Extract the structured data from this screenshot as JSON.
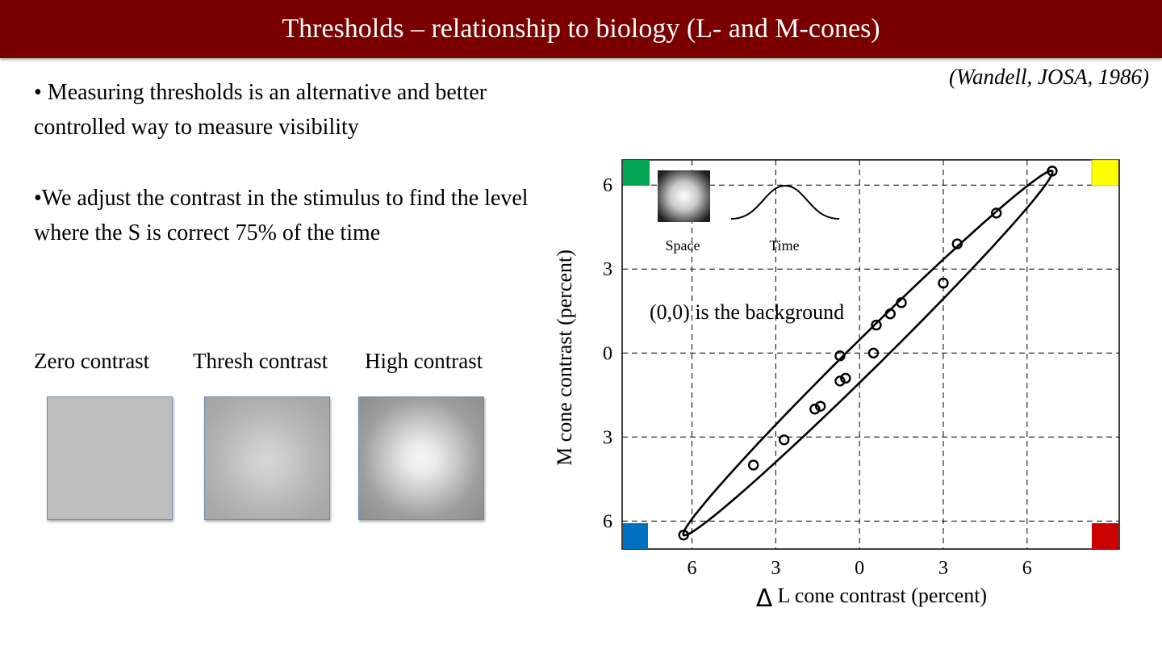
{
  "slide": {
    "title": "Thresholds – relationship to biology (L- and M-cones)",
    "citation": "(Wandell, JOSA, 1986)",
    "bullet1": "• Measuring thresholds is an alternative and better controlled way to measure visibility",
    "bullet2": "•We adjust the contrast in the stimulus to find the level where the S is correct 75% of the time"
  },
  "contrast_examples": {
    "zero_label": "Zero contrast",
    "thresh_label": "Thresh contrast",
    "high_label": "High contrast"
  },
  "colors": {
    "title_bar": "#7a0000",
    "corner_top_left": "#00a651",
    "corner_top_right": "#ffff00",
    "corner_bottom_left": "#0070c0",
    "corner_bottom_right": "#cc0000"
  },
  "chart_data": {
    "type": "scatter",
    "xlabel": "L cone contrast (percent)",
    "xlabel_prefix": "Δ",
    "ylabel": "M cone contrast (percent)",
    "xlim": [
      -8.5,
      9.3
    ],
    "ylim": [
      -7,
      6.9
    ],
    "x_ticks": [
      -6,
      -3,
      0,
      3,
      6
    ],
    "x_tick_labels": [
      "6",
      "3",
      "0",
      "3",
      "6"
    ],
    "y_ticks": [
      6,
      3,
      0,
      -3,
      -6
    ],
    "y_tick_labels": [
      "6",
      "3",
      "0",
      "3",
      "6"
    ],
    "grid": true,
    "grid_style": "dashed",
    "annotation": "(0,0) is the background",
    "inset_space_label": "Space",
    "inset_time_label": "Time",
    "points": [
      {
        "x": -6.3,
        "y": -6.5
      },
      {
        "x": -3.8,
        "y": -4.0
      },
      {
        "x": -2.7,
        "y": -3.1
      },
      {
        "x": -1.6,
        "y": -2.0
      },
      {
        "x": -1.4,
        "y": -1.9
      },
      {
        "x": -0.7,
        "y": -1.0
      },
      {
        "x": -0.5,
        "y": -0.9
      },
      {
        "x": -0.7,
        "y": -0.1
      },
      {
        "x": 0.5,
        "y": 0.0
      },
      {
        "x": 0.6,
        "y": 1.0
      },
      {
        "x": 1.1,
        "y": 1.4
      },
      {
        "x": 1.5,
        "y": 1.8
      },
      {
        "x": 3.0,
        "y": 2.5
      },
      {
        "x": 3.5,
        "y": 3.9
      },
      {
        "x": 4.9,
        "y": 5.0
      },
      {
        "x": 6.9,
        "y": 6.5
      }
    ],
    "ellipse": {
      "center": [
        0.3,
        0.0
      ],
      "major_direction": [
        6.6,
        6.5
      ],
      "minor_half_axis": 0.55
    }
  }
}
